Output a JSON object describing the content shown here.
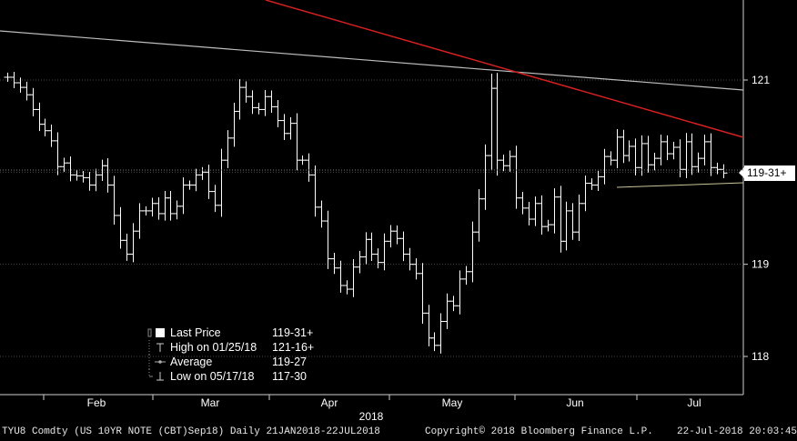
{
  "chart_data": {
    "type": "ohlc",
    "title": "",
    "x_label": "2018",
    "month_labels": [
      "Feb",
      "Mar",
      "Apr",
      "May",
      "Jun",
      "Jul"
    ],
    "y_ticks": [
      "118",
      "119",
      "121"
    ],
    "last_price_label": "119-31+",
    "ylim": [
      117.6,
      121.55
    ],
    "series": [
      {
        "name": "Last Price",
        "values": [
          121.03,
          120.97,
          120.92,
          120.84,
          120.68,
          120.52,
          120.45,
          120.34,
          120.06,
          120.1,
          119.97,
          119.96,
          119.94,
          119.86,
          119.97,
          120.07,
          119.86,
          119.53,
          119.26,
          119.11,
          119.36,
          119.58,
          119.58,
          119.66,
          119.55,
          119.72,
          119.55,
          119.63,
          119.86,
          119.86,
          119.97,
          120.0,
          119.79,
          119.64,
          120.13,
          120.37,
          120.66,
          120.92,
          120.82,
          120.7,
          120.68,
          120.82,
          120.71,
          120.56,
          120.42,
          120.53,
          120.13,
          120.13,
          119.97,
          119.62,
          119.47,
          119.06,
          118.96,
          118.77,
          118.73,
          118.97,
          119.08,
          119.27,
          119.11,
          119.02,
          119.25,
          119.36,
          119.28,
          119.11,
          119.0,
          118.9,
          118.47,
          118.2,
          118.12,
          118.38,
          118.6,
          118.55,
          118.84,
          118.92,
          119.35,
          119.71,
          120.18,
          120.91,
          120.13,
          120.07,
          120.17,
          119.72,
          119.61,
          119.49,
          119.66,
          119.41,
          119.43,
          119.73,
          119.25,
          119.58,
          119.35,
          119.66,
          119.88,
          119.86,
          119.95,
          120.17,
          120.13,
          120.38,
          120.18,
          120.28,
          120.05,
          120.31,
          120.08,
          120.15,
          120.33,
          120.2,
          120.27,
          120.03,
          120.33,
          120.06,
          120.15,
          120.33,
          120.05,
          120.03,
          119.99
        ]
      }
    ],
    "high": {
      "label": "High on 01/25/18",
      "value": "121-16+"
    },
    "average": {
      "label": "Average",
      "value": "119-27"
    },
    "low": {
      "label": "Low on 05/17/18",
      "value": "117-30"
    },
    "legend_position": "bottom-left"
  },
  "legend": {
    "last_label": "Last Price",
    "last_value": "119-31+",
    "high_label": "High on 01/25/18",
    "high_value": "121-16+",
    "avg_label": "Average",
    "avg_value": "119-27",
    "low_label": "Low on 05/17/18",
    "low_value": "117-30"
  },
  "footer": {
    "ticker": "TYU8 Comdty (US 10YR NOTE (CBT)Sep18)  Daily 21JAN2018-22JUL2018",
    "copyright": "Copyright© 2018 Bloomberg Finance L.P.",
    "timestamp": "22-Jul-2018 20:03:45"
  },
  "colors": {
    "background": "#000000",
    "bars": "#ffffff",
    "grid": "#4a4a4a",
    "trend_red": "#d42020",
    "trend_white": "#bdbdbd",
    "trend_support": "#c9c49a"
  }
}
